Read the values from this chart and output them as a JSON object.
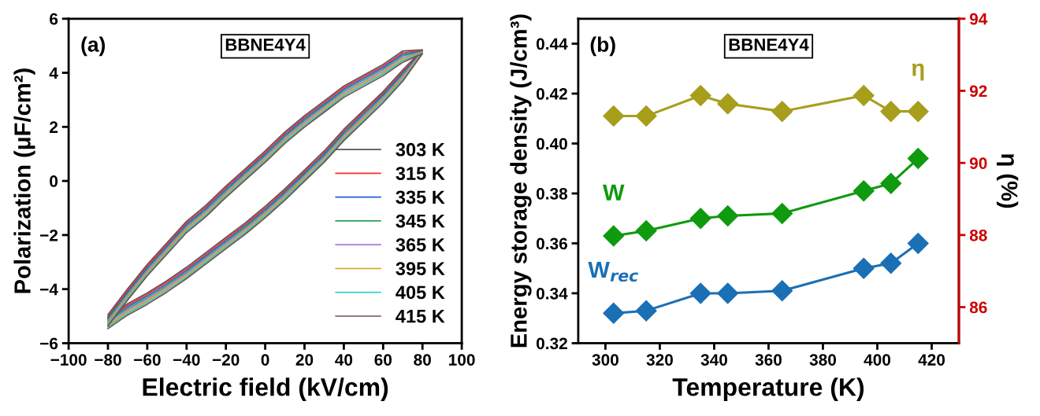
{
  "chart_data": [
    {
      "type": "line",
      "xlabel": "Electric field (kV/cm)",
      "ylabel": "Polarization (μF/cm²)",
      "annotations": [
        "(a)",
        "BBNE4Y4"
      ],
      "xlim": [
        -100,
        100
      ],
      "xticks": [
        -100,
        -80,
        -60,
        -40,
        -20,
        0,
        20,
        40,
        60,
        80,
        100
      ],
      "ylim": [
        -6,
        6
      ],
      "yticks": [
        -6,
        -4,
        -2,
        0,
        2,
        4,
        6
      ],
      "legend": "bottom right",
      "grid": false,
      "marker": "none",
      "line_style": "solid",
      "x": [
        -80,
        -70,
        -60,
        -50,
        -40,
        -30,
        -20,
        -10,
        0,
        10,
        20,
        30,
        40,
        50,
        60,
        70,
        80,
        70,
        60,
        50,
        40,
        30,
        20,
        10,
        0,
        -10,
        -20,
        -30,
        -40,
        -50,
        -60,
        -70,
        -80
      ],
      "series": [
        {
          "name": "303 K",
          "color": "#555555",
          "values": [
            -5.04,
            -4.54,
            -4.14,
            -3.69,
            -3.19,
            -2.64,
            -2.09,
            -1.54,
            -0.94,
            -0.29,
            0.41,
            1.11,
            1.91,
            2.61,
            3.31,
            4.11,
            4.85,
            4.81,
            4.31,
            3.91,
            3.51,
            2.96,
            2.41,
            1.81,
            1.11,
            0.46,
            -0.19,
            -0.89,
            -1.49,
            -2.29,
            -3.09,
            -3.99,
            -4.94
          ]
        },
        {
          "name": "315 K",
          "color": "#ff2a2a",
          "values": [
            -5.1,
            -4.6,
            -4.2,
            -3.75,
            -3.25,
            -2.7,
            -2.15,
            -1.6,
            -1.0,
            -0.35,
            0.35,
            1.05,
            1.85,
            2.55,
            3.25,
            4.05,
            4.83,
            4.75,
            4.25,
            3.85,
            3.45,
            2.9,
            2.35,
            1.75,
            1.05,
            0.4,
            -0.25,
            -0.95,
            -1.55,
            -2.35,
            -3.15,
            -4.05,
            -5.0
          ]
        },
        {
          "name": "335 K",
          "color": "#1f5fd6",
          "values": [
            -5.16,
            -4.66,
            -4.26,
            -3.81,
            -3.31,
            -2.76,
            -2.21,
            -1.66,
            -1.06,
            -0.41,
            0.29,
            0.99,
            1.79,
            2.49,
            3.19,
            3.99,
            4.81,
            4.69,
            4.19,
            3.79,
            3.39,
            2.84,
            2.29,
            1.69,
            0.99,
            0.34,
            -0.31,
            -1.01,
            -1.61,
            -2.41,
            -3.21,
            -4.11,
            -5.06
          ]
        },
        {
          "name": "345 K",
          "color": "#2ca05a",
          "values": [
            -5.22,
            -4.72,
            -4.32,
            -3.87,
            -3.37,
            -2.82,
            -2.27,
            -1.72,
            -1.12,
            -0.47,
            0.23,
            0.93,
            1.73,
            2.43,
            3.13,
            3.93,
            4.79,
            4.63,
            4.13,
            3.73,
            3.33,
            2.78,
            2.23,
            1.63,
            0.93,
            0.28,
            -0.37,
            -1.07,
            -1.67,
            -2.47,
            -3.27,
            -4.17,
            -5.12
          ]
        },
        {
          "name": "365 K",
          "color": "#a87ee0",
          "values": [
            -5.28,
            -4.78,
            -4.38,
            -3.93,
            -3.43,
            -2.88,
            -2.33,
            -1.78,
            -1.18,
            -0.53,
            0.17,
            0.87,
            1.67,
            2.37,
            3.07,
            3.87,
            4.77,
            4.57,
            4.07,
            3.67,
            3.27,
            2.72,
            2.17,
            1.57,
            0.87,
            0.22,
            -0.43,
            -1.13,
            -1.73,
            -2.53,
            -3.33,
            -4.23,
            -5.18
          ]
        },
        {
          "name": "395 K",
          "color": "#d4a017",
          "values": [
            -5.34,
            -4.84,
            -4.44,
            -3.99,
            -3.49,
            -2.94,
            -2.39,
            -1.84,
            -1.24,
            -0.59,
            0.11,
            0.81,
            1.61,
            2.31,
            3.01,
            3.81,
            4.75,
            4.51,
            4.01,
            3.61,
            3.21,
            2.66,
            2.11,
            1.51,
            0.81,
            0.16,
            -0.49,
            -1.19,
            -1.79,
            -2.59,
            -3.39,
            -4.29,
            -5.24
          ]
        },
        {
          "name": "405 K",
          "color": "#20c8c8",
          "values": [
            -5.4,
            -4.9,
            -4.5,
            -4.05,
            -3.55,
            -3.0,
            -2.45,
            -1.9,
            -1.3,
            -0.65,
            0.05,
            0.75,
            1.55,
            2.25,
            2.95,
            3.75,
            4.73,
            4.45,
            3.95,
            3.55,
            3.15,
            2.6,
            2.05,
            1.45,
            0.75,
            0.1,
            -0.55,
            -1.25,
            -1.85,
            -2.65,
            -3.45,
            -4.35,
            -5.3
          ]
        },
        {
          "name": "415 K",
          "color": "#7b4a4a",
          "values": [
            -5.46,
            -4.96,
            -4.56,
            -4.11,
            -3.61,
            -3.06,
            -2.51,
            -1.96,
            -1.36,
            -0.71,
            -0.01,
            0.69,
            1.49,
            2.19,
            2.89,
            3.69,
            4.71,
            4.39,
            3.89,
            3.49,
            3.09,
            2.54,
            1.99,
            1.39,
            0.69,
            0.04,
            -0.61,
            -1.31,
            -1.91,
            -2.71,
            -3.51,
            -4.41,
            -5.36
          ]
        }
      ]
    },
    {
      "type": "line",
      "xlabel": "Temperature (K)",
      "ylabel": "Energy storage density (J/cm³)",
      "y2label": "η (%)",
      "annotations": [
        "(b)",
        "BBNE4Y4"
      ],
      "xlim": [
        290,
        430
      ],
      "xticks": [
        300,
        320,
        340,
        360,
        380,
        400,
        420
      ],
      "ylim": [
        0.32,
        0.45
      ],
      "yticks": [
        0.32,
        0.34,
        0.36,
        0.38,
        {
          "value": 0.4,
          "label": "0.40"
        },
        0.42,
        0.44
      ],
      "y2lim": [
        85,
        94
      ],
      "y2ticks": [
        86,
        88,
        90,
        92,
        94
      ],
      "grid": false,
      "marker": "diamond",
      "line_style": "solid",
      "x": [
        303,
        315,
        335,
        345,
        365,
        395,
        405,
        415
      ],
      "series": [
        {
          "name": "W",
          "color": "#0f9a0f",
          "values": [
            0.363,
            0.365,
            0.37,
            0.371,
            0.372,
            0.381,
            0.384,
            0.394
          ]
        },
        {
          "name": "W$_{rec}$",
          "color": "#1b6fb5",
          "values": [
            0.332,
            0.333,
            0.34,
            0.34,
            0.341,
            0.35,
            0.352,
            0.36
          ]
        },
        {
          "name": "η",
          "color": "#a79f1c",
          "axis": "y2",
          "values": [
            91.3,
            91.3,
            91.87,
            91.64,
            91.43,
            91.87,
            91.43,
            91.43
          ]
        }
      ]
    }
  ]
}
